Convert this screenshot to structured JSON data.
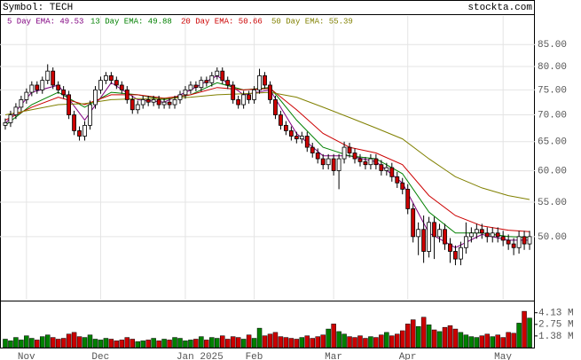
{
  "chart_data": {
    "type": "candlestick",
    "symbol_label": "Symbol: TECH",
    "source": "stockta.com",
    "x": [
      0,
      1,
      2,
      3,
      4,
      5,
      6,
      7,
      8,
      9,
      10,
      11,
      12,
      13,
      14,
      15,
      16,
      17,
      18,
      19,
      20,
      21,
      22,
      23,
      24,
      25,
      26,
      27,
      28,
      29,
      30,
      31,
      32,
      33,
      34,
      35,
      36,
      37,
      38,
      39,
      40,
      41,
      42,
      43,
      44,
      45,
      46,
      47,
      48,
      49,
      50,
      51,
      52,
      53,
      54,
      55,
      56,
      57,
      58,
      59,
      60,
      61,
      62,
      63,
      64,
      65,
      66,
      67,
      68,
      69,
      70,
      71,
      72,
      73,
      74,
      75,
      76,
      77,
      78,
      79,
      80,
      81,
      82,
      83,
      84,
      85,
      86,
      87,
      88,
      89,
      90,
      91,
      92,
      93,
      94,
      95,
      96,
      97,
      98,
      99
    ],
    "open": [
      68,
      68.5,
      70,
      71.5,
      73,
      74.5,
      76,
      75,
      77,
      79,
      76,
      75,
      74,
      70,
      67,
      66,
      68,
      72,
      75,
      77,
      78,
      77,
      76,
      75,
      73,
      71,
      72,
      73,
      72.5,
      73,
      72,
      72.5,
      72,
      73,
      74,
      75,
      76,
      75.5,
      77,
      76.5,
      78,
      79,
      77,
      76,
      73,
      72,
      74,
      73,
      75,
      78,
      76,
      73,
      70,
      68,
      67,
      66,
      65.5,
      66,
      64,
      63,
      62,
      61,
      62,
      60,
      62,
      64,
      63,
      62,
      61.5,
      61,
      62,
      61,
      60,
      60.5,
      59,
      58,
      57,
      54,
      50,
      51,
      48,
      52,
      50,
      51,
      49,
      48,
      47,
      48.5,
      50,
      50.5,
      51,
      50.5,
      50,
      50.5,
      50,
      49.5,
      49,
      48.5,
      50,
      49
    ],
    "high": [
      69.3,
      70.8,
      72.3,
      73.8,
      75.3,
      76.8,
      76.8,
      77.8,
      80.5,
      79.8,
      76.8,
      75.8,
      74.8,
      70.8,
      67.8,
      68.8,
      72.8,
      75.8,
      77.8,
      78.8,
      78.8,
      77.8,
      76.8,
      75.8,
      73.8,
      72.8,
      73.8,
      73.8,
      73.8,
      73.8,
      73.3,
      73.3,
      73.8,
      74.8,
      75.8,
      76.8,
      76.8,
      77.8,
      77.8,
      78.8,
      79.8,
      79.8,
      77.8,
      76.8,
      73.8,
      74.8,
      74.8,
      75.8,
      79.5,
      78.8,
      76.8,
      73.8,
      70.8,
      68.8,
      67.8,
      66.8,
      66.8,
      66.8,
      64.8,
      63.8,
      62.8,
      62.8,
      62.8,
      62.8,
      65,
      64.8,
      63.8,
      62.8,
      62.3,
      62.8,
      62.8,
      61.8,
      61.3,
      61.3,
      59.8,
      58.8,
      57.8,
      54.8,
      52,
      53,
      52.8,
      52.8,
      51.8,
      51.8,
      49.8,
      48.8,
      49.3,
      52,
      51.3,
      51.8,
      51.8,
      51.3,
      51.3,
      51.3,
      50.8,
      50.3,
      49.8,
      50.8,
      50.8,
      50.8
    ],
    "low": [
      67.2,
      67.7,
      69.2,
      70.7,
      72.2,
      73.7,
      74.2,
      74.2,
      76.2,
      75.2,
      74.2,
      73.2,
      69.2,
      66.2,
      65.2,
      65.2,
      67.2,
      71.2,
      74.2,
      76.2,
      76.2,
      75.2,
      74.2,
      72.2,
      70.2,
      70.2,
      71.2,
      71.7,
      71.7,
      71.2,
      71.2,
      71.2,
      71.2,
      72.2,
      73.2,
      74.2,
      74.7,
      74.7,
      75.7,
      75.7,
      77.2,
      76.2,
      75.2,
      72.2,
      71.2,
      71.2,
      72.2,
      72.2,
      74.2,
      75.2,
      72.2,
      69.2,
      67.2,
      66.2,
      65.2,
      64.7,
      64.7,
      63.2,
      62.2,
      61.2,
      60.2,
      60.2,
      59.2,
      57,
      61.2,
      62.2,
      61.2,
      60.7,
      60.2,
      60.2,
      60.2,
      59.2,
      59.2,
      58.2,
      57.2,
      56.2,
      53.2,
      49.2,
      47.5,
      46.5,
      47.2,
      47,
      49.2,
      48.2,
      46.5,
      46.2,
      46.2,
      47.7,
      49.2,
      49.7,
      49.7,
      49.2,
      49.2,
      49.2,
      48.7,
      48.2,
      47.5,
      47.7,
      48.2,
      48.2
    ],
    "close": [
      68.5,
      70,
      71.5,
      73,
      74.5,
      76,
      75,
      77,
      79,
      76,
      75,
      74,
      70,
      67,
      66,
      68,
      72,
      75,
      77,
      78,
      77,
      76,
      75,
      73,
      71,
      72,
      73,
      72.5,
      73,
      72,
      72.5,
      72,
      73,
      74,
      75,
      76,
      75.5,
      77,
      76.5,
      78,
      79,
      77,
      76,
      73,
      72,
      74,
      73,
      75,
      78,
      76,
      73,
      70,
      68,
      67,
      66,
      65.5,
      66,
      64,
      63,
      62,
      61,
      62,
      60,
      62,
      64,
      63,
      62,
      61.5,
      61,
      62,
      61,
      60,
      60.5,
      59,
      58,
      57,
      54,
      50,
      51,
      48,
      52,
      50,
      51,
      49,
      48,
      47,
      48.5,
      50,
      50.5,
      51,
      50.5,
      50,
      50.5,
      50,
      49.5,
      49,
      48.5,
      50,
      49,
      50
    ],
    "volume": [
      1.0,
      0.8,
      1.2,
      0.9,
      1.4,
      1.1,
      0.9,
      1.3,
      1.5,
      1.2,
      1.0,
      1.1,
      1.6,
      1.8,
      1.3,
      1.2,
      1.5,
      1.0,
      0.9,
      1.1,
      1.0,
      0.8,
      0.9,
      1.2,
      1.0,
      0.7,
      0.8,
      0.9,
      1.1,
      0.8,
      1.0,
      0.9,
      1.2,
      1.1,
      0.8,
      0.9,
      1.0,
      1.3,
      0.9,
      1.2,
      1.1,
      1.4,
      1.0,
      1.3,
      1.2,
      1.0,
      1.5,
      1.1,
      2.3,
      1.4,
      1.6,
      1.8,
      1.3,
      1.2,
      1.1,
      1.0,
      1.2,
      1.4,
      1.1,
      1.3,
      1.5,
      2.2,
      2.8,
      1.9,
      1.6,
      1.3,
      1.2,
      1.4,
      1.1,
      1.3,
      1.2,
      1.5,
      1.8,
      1.4,
      1.6,
      2.0,
      2.8,
      3.3,
      2.5,
      3.6,
      2.7,
      2.1,
      1.9,
      2.4,
      2.6,
      2.2,
      1.8,
      1.5,
      1.3,
      1.2,
      1.4,
      1.6,
      1.3,
      1.5,
      1.2,
      1.8,
      1.7,
      2.9,
      4.3,
      3.5
    ],
    "ema": [
      {
        "name": "5 Day EMA: 49.53",
        "color": "#800080",
        "x": [
          0,
          5,
          10,
          15,
          20,
          25,
          30,
          35,
          40,
          45,
          50,
          55,
          60,
          65,
          70,
          75,
          80,
          85,
          90,
          95,
          99
        ],
        "values": [
          68.3,
          74.5,
          76,
          69,
          76.5,
          73,
          72.5,
          75,
          78,
          74,
          75,
          66.5,
          62.5,
          62.5,
          61.5,
          58,
          50.5,
          48.5,
          50.3,
          49.5,
          49.5
        ]
      },
      {
        "name": "13 Day EMA: 49.88",
        "color": "#008000",
        "x": [
          0,
          5,
          10,
          15,
          20,
          25,
          30,
          35,
          40,
          45,
          50,
          55,
          60,
          65,
          70,
          75,
          80,
          85,
          90,
          95,
          99
        ],
        "values": [
          68,
          72,
          74.5,
          71.5,
          74.5,
          74,
          73,
          74,
          76.5,
          75,
          75.5,
          69,
          64,
          62.5,
          62,
          59.5,
          53.5,
          50.5,
          50.5,
          50,
          49.9
        ]
      },
      {
        "name": "20 Day EMA: 50.66",
        "color": "#cc0000",
        "x": [
          0,
          5,
          10,
          15,
          20,
          25,
          30,
          35,
          40,
          45,
          50,
          55,
          60,
          65,
          70,
          75,
          80,
          85,
          90,
          95,
          99
        ],
        "values": [
          69,
          71.5,
          73.5,
          72,
          74,
          74,
          73.3,
          74,
          75.5,
          75,
          75.3,
          71,
          66.5,
          64,
          63,
          61,
          56,
          53,
          51.5,
          50.9,
          50.7
        ]
      },
      {
        "name": "50 Day EMA: 55.39",
        "color": "#808000",
        "x": [
          0,
          5,
          10,
          15,
          20,
          25,
          30,
          35,
          40,
          45,
          50,
          55,
          60,
          65,
          70,
          75,
          80,
          85,
          90,
          95,
          99
        ],
        "values": [
          70,
          71,
          72,
          72.2,
          73,
          73.2,
          73.2,
          73.5,
          74,
          74.2,
          74.5,
          73.5,
          71.5,
          69.5,
          67.5,
          65.5,
          62,
          59,
          57.2,
          56,
          55.4
        ]
      }
    ],
    "xlim": [
      -1,
      100
    ],
    "xticks": [
      {
        "value": 4,
        "label": "Nov"
      },
      {
        "value": 18,
        "label": "Dec"
      },
      {
        "value": 34,
        "label": "Jan 2025"
      },
      {
        "value": 47,
        "label": "Feb"
      },
      {
        "value": 62,
        "label": "Mar"
      },
      {
        "value": 76,
        "label": "Apr"
      },
      {
        "value": 94,
        "label": "May"
      }
    ],
    "ylim": [
      42,
      92
    ],
    "ylog": true,
    "yticks": [
      {
        "value": 50,
        "label": "50.00"
      },
      {
        "value": 55,
        "label": "55.00"
      },
      {
        "value": 60,
        "label": "60.00"
      },
      {
        "value": 65,
        "label": "65.00"
      },
      {
        "value": 70,
        "label": "70.00"
      },
      {
        "value": 75,
        "label": "75.00"
      },
      {
        "value": 80,
        "label": "80.00"
      },
      {
        "value": 85,
        "label": "85.00"
      }
    ],
    "volume_ylim": [
      0,
      5.36
    ],
    "volume_yticks": [
      {
        "value": 1.38,
        "label": "1.38 M"
      },
      {
        "value": 2.75,
        "label": "2.75 M"
      },
      {
        "value": 4.13,
        "label": "4.13 M"
      }
    ],
    "grid": true,
    "up_color": "#ffffff",
    "down_color": "#cc0000",
    "volume_up_color": "#008000",
    "volume_down_color": "#cc0000"
  }
}
